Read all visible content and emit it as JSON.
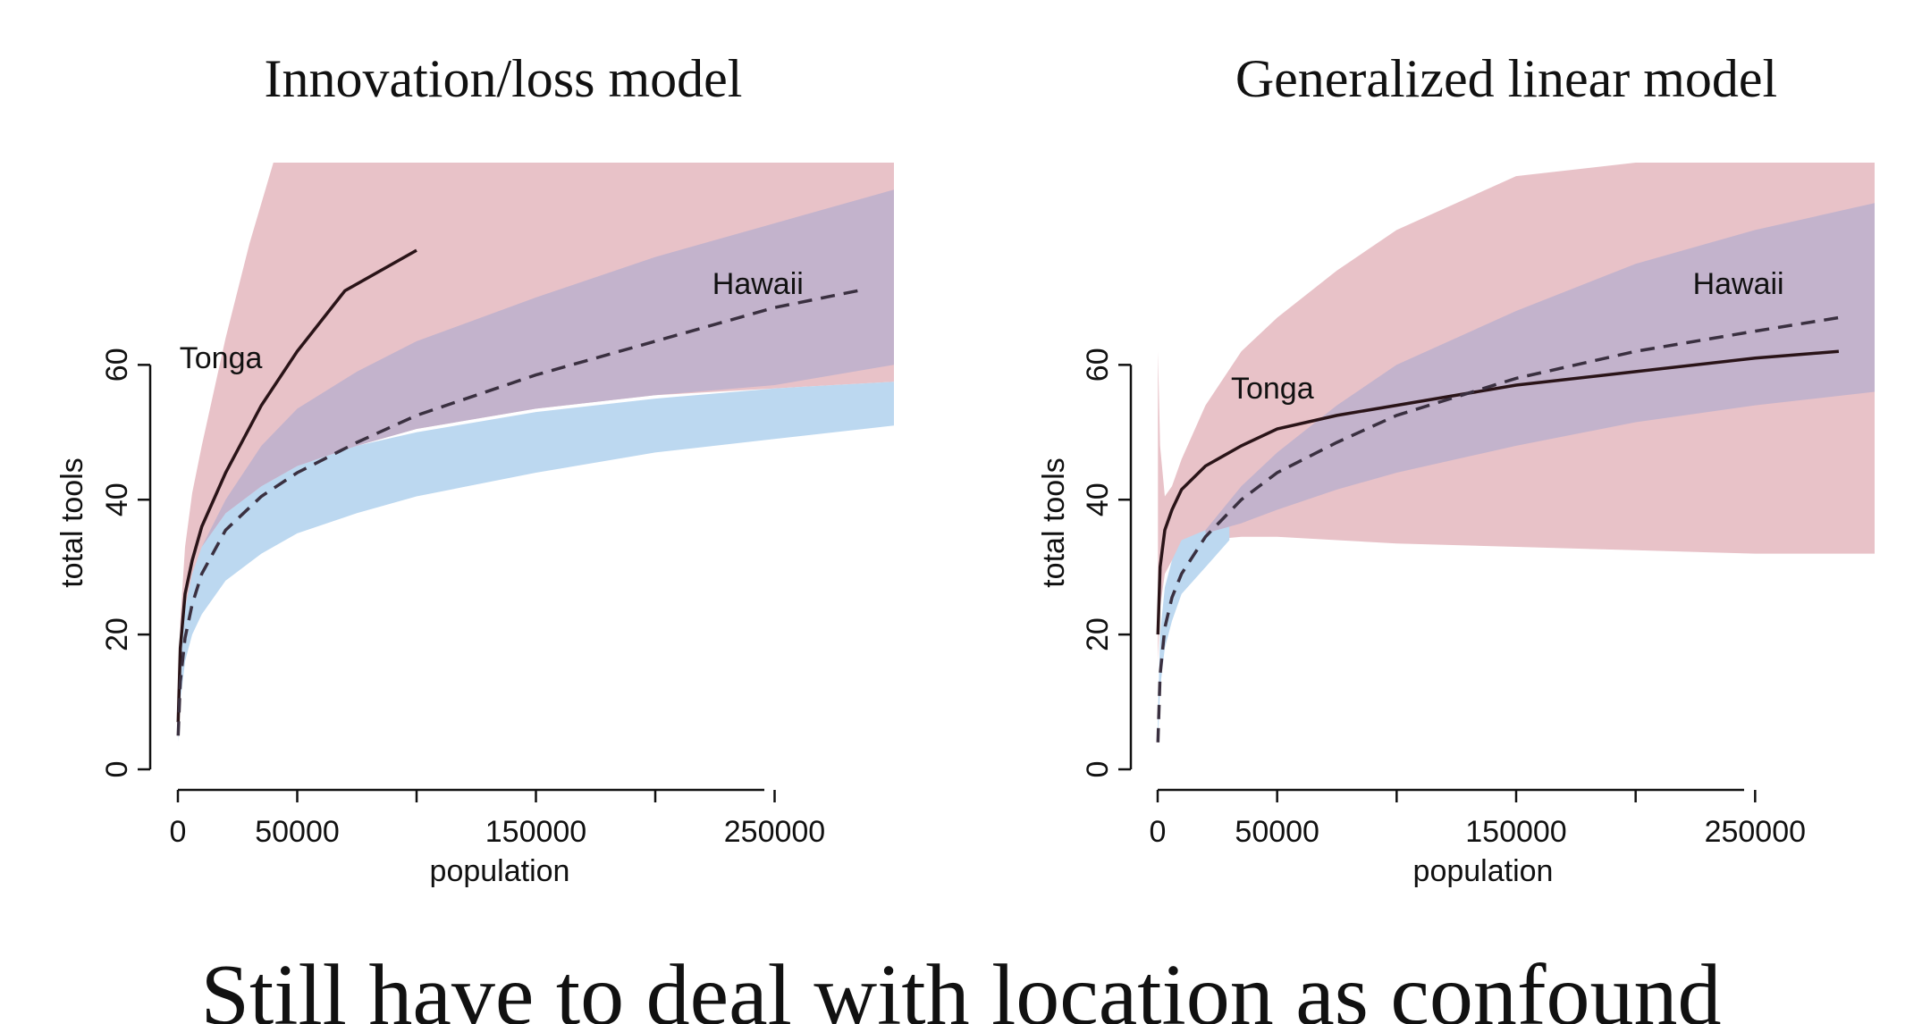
{
  "slide": {
    "caption": "Still have to deal with location as confound"
  },
  "colors": {
    "band_red": "#e8c2c8",
    "band_blue": "#bcd8f0",
    "band_overlap": "#c3b3cc",
    "line_dark": "#2a1418",
    "dashed_line": "#3a3040",
    "axis": "#111111"
  },
  "chart_data": [
    {
      "type": "line",
      "title": "Innovation/loss model",
      "xlabel": "population",
      "ylabel": "total tools",
      "xlim": [
        0,
        300000
      ],
      "ylim": [
        0,
        90
      ],
      "xticks": [
        0,
        50000,
        100000,
        150000,
        200000,
        250000
      ],
      "xtick_labels": [
        "0",
        "50000",
        "",
        "150000",
        "",
        "250000"
      ],
      "yticks": [
        0,
        20,
        40,
        60
      ],
      "ytick_labels": [
        "0",
        "20",
        "40",
        "60"
      ],
      "annotations": [
        {
          "label": "Tonga",
          "x": 18000,
          "y": 59.5
        },
        {
          "label": "Hawaii",
          "x": 243000,
          "y": 70.5
        }
      ],
      "series": [
        {
          "style": "solid",
          "x": [
            100,
            1000,
            3000,
            6000,
            10000,
            20000,
            35000,
            50000,
            70000,
            100000
          ],
          "values": [
            7,
            18,
            26,
            31,
            36,
            44,
            54,
            62,
            71,
            77
          ]
        },
        {
          "style": "dashed",
          "x": [
            100,
            1000,
            3000,
            6000,
            10000,
            20000,
            35000,
            50000,
            75000,
            100000,
            150000,
            200000,
            250000,
            285000
          ],
          "values": [
            5,
            13,
            19.5,
            24.5,
            29,
            35.5,
            40.5,
            44,
            48.5,
            52.5,
            58.5,
            63.5,
            68.5,
            71
          ]
        }
      ],
      "bands": [
        {
          "color": "red",
          "x": [
            100,
            1000,
            3000,
            6000,
            10000,
            20000,
            30000,
            40000,
            50000,
            60000,
            100000,
            150000,
            200000,
            250000,
            300000
          ],
          "upper": [
            9,
            22,
            33,
            41,
            48,
            64,
            78,
            90,
            90,
            90,
            90,
            90,
            90,
            90,
            90
          ],
          "lower": [
            6,
            15,
            22,
            27,
            30,
            36,
            40,
            42.5,
            44.5,
            46.5,
            50.5,
            53.5,
            55.5,
            56.5,
            57.5
          ]
        },
        {
          "color": "blue",
          "x": [
            100,
            1000,
            3000,
            6000,
            10000,
            20000,
            35000,
            50000,
            75000,
            100000,
            150000,
            200000,
            250000,
            300000
          ],
          "upper": [
            7,
            16,
            24,
            29,
            33,
            38,
            42,
            45,
            48,
            50,
            53,
            55,
            56.5,
            57.5
          ],
          "lower": [
            4,
            10,
            16,
            20,
            23,
            28,
            32,
            35,
            38,
            40.5,
            44,
            47,
            49,
            51
          ]
        },
        {
          "color": "purple",
          "x": [
            10000,
            20000,
            35000,
            50000,
            75000,
            100000,
            150000,
            200000,
            250000,
            300000
          ],
          "upper": [
            33,
            40,
            48,
            53.5,
            59,
            63.5,
            70,
            76,
            81,
            86
          ],
          "lower": [
            33,
            38,
            42,
            45,
            48,
            50.5,
            53.5,
            55.5,
            57,
            60
          ]
        }
      ]
    },
    {
      "type": "line",
      "title": "Generalized linear model",
      "xlabel": "population",
      "ylabel": "total tools",
      "xlim": [
        0,
        300000
      ],
      "ylim": [
        0,
        90
      ],
      "xticks": [
        0,
        50000,
        100000,
        150000,
        200000,
        250000
      ],
      "xtick_labels": [
        "0",
        "50000",
        "",
        "150000",
        "",
        "250000"
      ],
      "yticks": [
        0,
        20,
        40,
        60
      ],
      "ytick_labels": [
        "0",
        "20",
        "40",
        "60"
      ],
      "annotations": [
        {
          "label": "Tonga",
          "x": 48000,
          "y": 55
        },
        {
          "label": "Hawaii",
          "x": 243000,
          "y": 70.5
        }
      ],
      "series": [
        {
          "style": "solid",
          "x": [
            100,
            1000,
            3000,
            6000,
            10000,
            20000,
            35000,
            50000,
            75000,
            100000,
            150000,
            200000,
            250000,
            285000
          ],
          "values": [
            20,
            30,
            35.5,
            38.5,
            41.5,
            45,
            48,
            50.5,
            52.5,
            54,
            57,
            59,
            61,
            62
          ]
        },
        {
          "style": "dashed",
          "x": [
            100,
            1000,
            3000,
            6000,
            10000,
            20000,
            35000,
            50000,
            75000,
            100000,
            150000,
            200000,
            250000,
            285000
          ],
          "values": [
            4,
            14,
            21,
            25.5,
            29,
            34.5,
            40,
            44,
            48.5,
            52.5,
            58,
            62,
            65,
            67
          ]
        }
      ],
      "bands": [
        {
          "color": "red",
          "x": [
            100,
            1000,
            3000,
            6000,
            10000,
            20000,
            35000,
            50000,
            75000,
            100000,
            150000,
            200000,
            250000,
            300000
          ],
          "upper": [
            62,
            48,
            40.5,
            42,
            46,
            54,
            62,
            67,
            74,
            80,
            88,
            90,
            90,
            90
          ],
          "lower": [
            16,
            24,
            29,
            31,
            32.5,
            34,
            34.5,
            34.5,
            34,
            33.5,
            33,
            32.5,
            32,
            32
          ]
        },
        {
          "color": "blue",
          "x": [
            100,
            1000,
            3000,
            6000,
            10000,
            20000,
            30000
          ],
          "upper": [
            8,
            20,
            27,
            31,
            34,
            35.5,
            36
          ],
          "lower": [
            4,
            12,
            18,
            22,
            26,
            30,
            34
          ]
        },
        {
          "color": "purple",
          "x": [
            20000,
            35000,
            50000,
            75000,
            100000,
            150000,
            200000,
            250000,
            300000
          ],
          "upper": [
            35.5,
            42,
            47,
            54,
            60,
            68,
            75,
            80,
            84
          ],
          "lower": [
            35,
            36.5,
            38.5,
            41.5,
            44,
            48,
            51.5,
            54,
            56
          ]
        }
      ]
    }
  ]
}
